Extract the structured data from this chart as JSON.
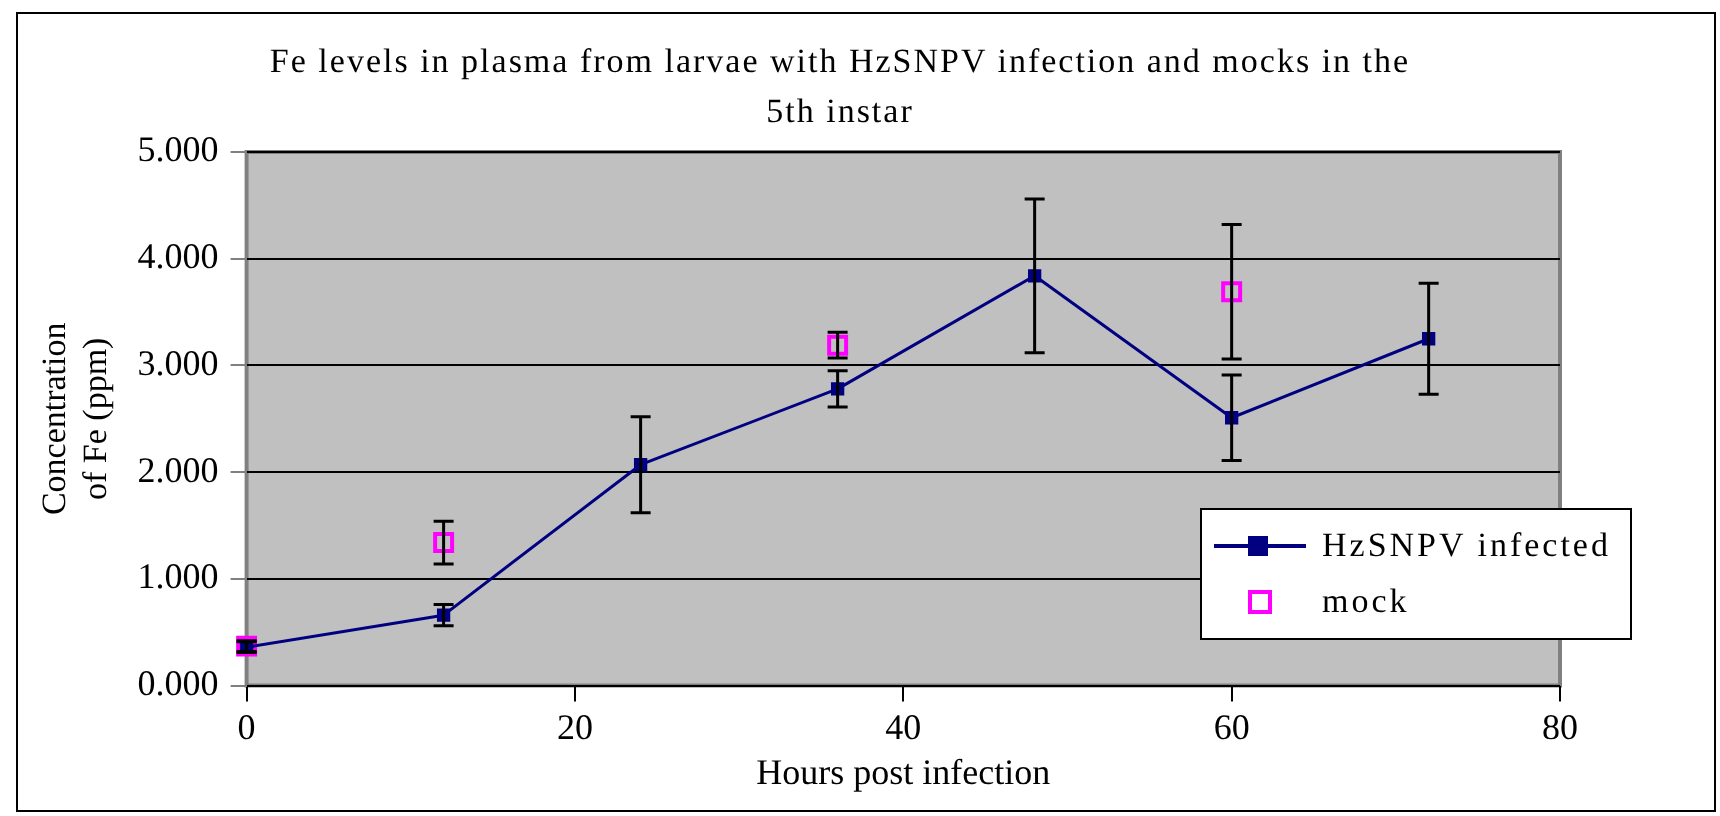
{
  "chart_data": {
    "type": "line",
    "title": "Fe levels in plasma from larvae with HzSNPV infection and mocks in the 5th instar",
    "xlabel": "Hours post infection",
    "ylabel": "Concentration of Fe (ppm)",
    "x": [
      0,
      12,
      24,
      36,
      48,
      60,
      72
    ],
    "series": [
      {
        "name": "HzSNPV infected",
        "type": "line",
        "color": "#000080",
        "marker": "square",
        "values": [
          0.36,
          0.66,
          2.07,
          2.78,
          3.84,
          2.51,
          3.25
        ],
        "errors": [
          0.05,
          0.1,
          0.45,
          0.17,
          0.72,
          0.4,
          0.52
        ]
      },
      {
        "name": "mock",
        "type": "scatter",
        "color": "#ff00ff",
        "marker": "square",
        "values": [
          0.37,
          1.34,
          null,
          3.19,
          null,
          3.69,
          null
        ],
        "errors": [
          0.05,
          0.2,
          null,
          0.12,
          null,
          0.63,
          null
        ]
      }
    ],
    "xlim": [
      0,
      80
    ],
    "xticks": [
      0,
      20,
      40,
      60,
      80
    ],
    "ylim": [
      0,
      5
    ],
    "yticks": [
      {
        "value": 0,
        "label": "0.000"
      },
      {
        "value": 1,
        "label": "1.000"
      },
      {
        "value": 2,
        "label": "2.000"
      },
      {
        "value": 3,
        "label": "3.000"
      },
      {
        "value": 4,
        "label": "4.000"
      },
      {
        "value": 5,
        "label": "5.000"
      }
    ],
    "grid": "y",
    "legend": "bottom right"
  }
}
